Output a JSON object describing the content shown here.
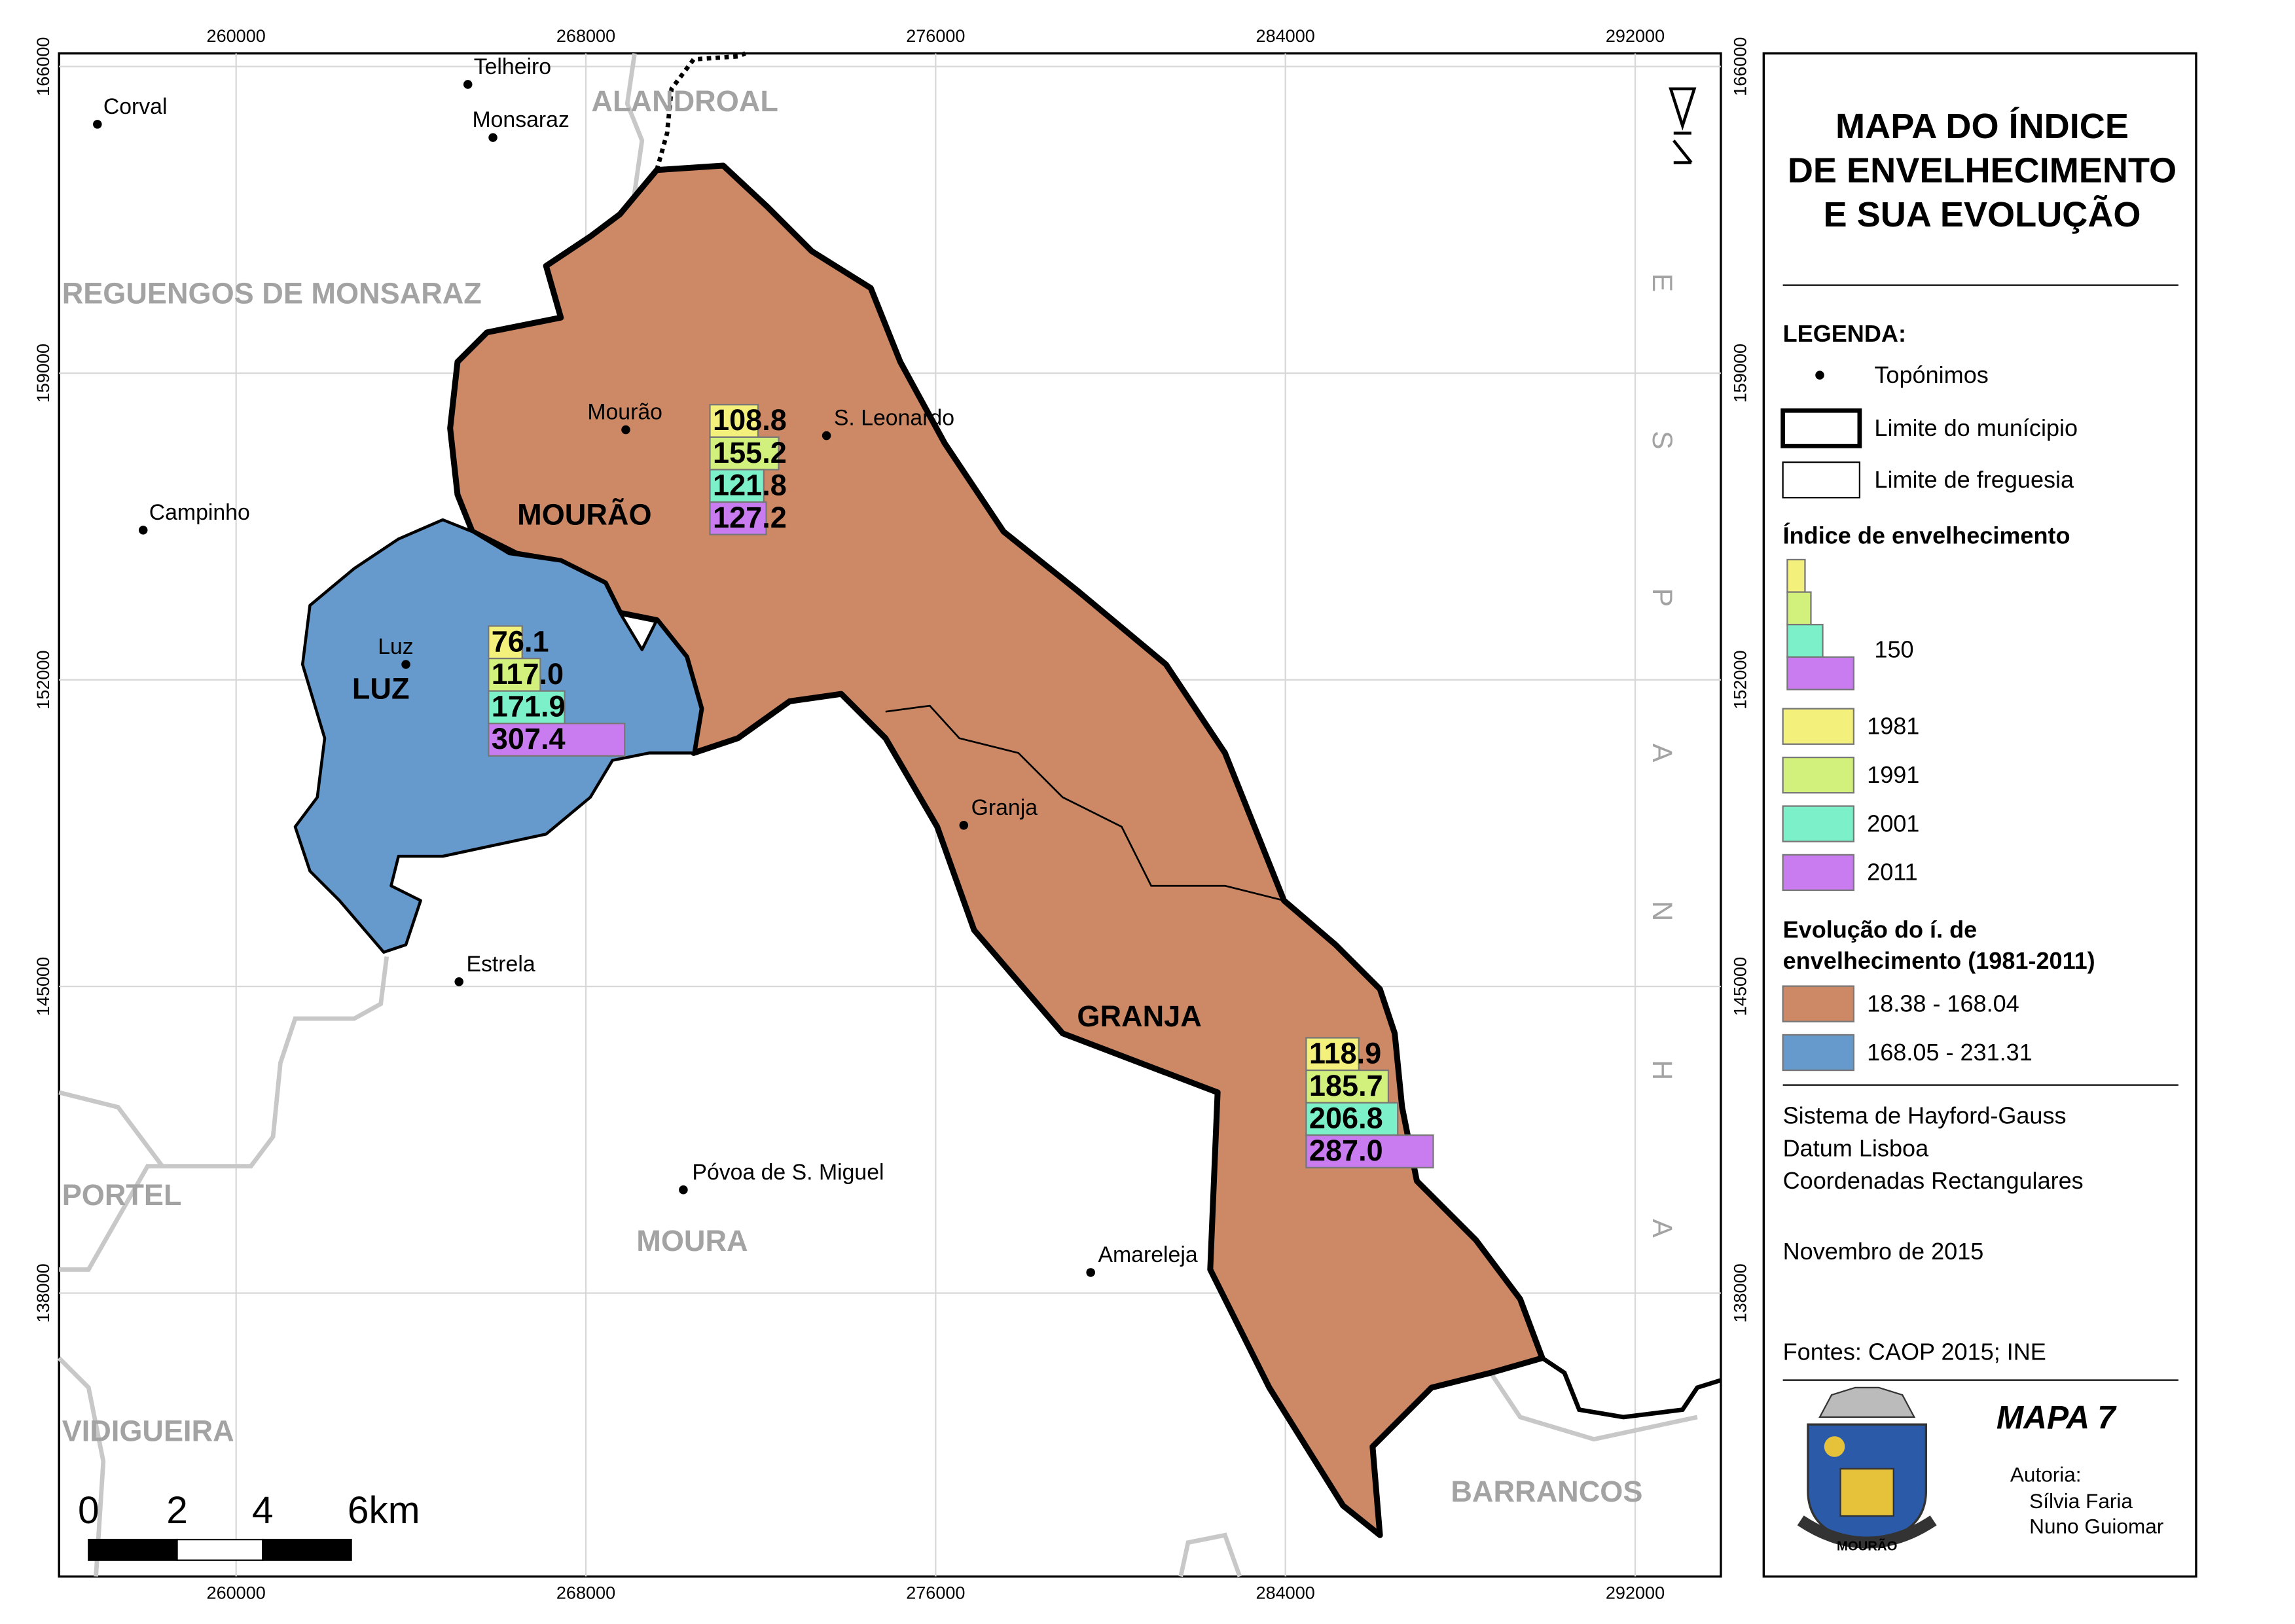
{
  "title": [
    "MAPA DO ÍNDICE",
    "DE ENVELHECIMENTO",
    "E SUA EVOLUÇÃO"
  ],
  "map": {
    "xlim": [
      255950,
      293960
    ],
    "ylim": [
      131530,
      166300
    ],
    "xticks": [
      260000,
      268000,
      276000,
      284000,
      292000
    ],
    "yticks": [
      138000,
      145000,
      152000,
      159000,
      166000
    ],
    "regions": [
      "ALANDROAL",
      "REGUENGOS DE MONSARAZ",
      "PORTEL",
      "MOURA",
      "VIDIGUEIRA",
      "BARRANCOS",
      "ESPANHA"
    ],
    "parishes": [
      "MOURÃO",
      "LUZ",
      "GRANJA"
    ],
    "places": [
      "Telheiro",
      "Corval",
      "Monsaraz",
      "Mourão",
      "S. Leonardo",
      "Campinho",
      "Luz",
      "Granja",
      "Estrela",
      "Póvoa de S. Miguel",
      "Amareleja"
    ],
    "bar_groups": [
      {
        "values": [
          108.8,
          155.2,
          121.8,
          127.2
        ],
        "value_labels": [
          "108.8",
          "155.2",
          "121.8",
          "127.2"
        ]
      },
      {
        "values": [
          76.1,
          117.0,
          171.9,
          307.4
        ],
        "value_labels": [
          "76.1",
          "117.0",
          "171.9",
          "307.4"
        ]
      },
      {
        "values": [
          118.9,
          185.7,
          206.8,
          287.0
        ],
        "value_labels": [
          "118.9",
          "185.7",
          "206.8",
          "287.0"
        ]
      }
    ],
    "scale_bar": [
      0,
      2,
      4,
      "6km"
    ]
  },
  "legend": {
    "heading": "LEGENDA:",
    "items": [
      "Topónimos",
      "Limite do munícipio",
      "Limite de freguesia"
    ],
    "index_heading": "Índice de envelhecimento",
    "reference": 150,
    "years": [
      {
        "label": "1981",
        "color": "#f3f07c"
      },
      {
        "label": "1991",
        "color": "#d2f07c"
      },
      {
        "label": "2001",
        "color": "#7cf0c8"
      },
      {
        "label": "2011",
        "color": "#c87cf0"
      }
    ],
    "evolution_heading": [
      "Evolução do í. de",
      "envelhecimento (1981-2011)"
    ],
    "classes": [
      {
        "label": "18.38 - 168.04",
        "color": "#cd8966"
      },
      {
        "label": "168.05 - 231.31",
        "color": "#6699cc"
      }
    ]
  },
  "projection": [
    "Sistema de Hayford-Gauss",
    "Datum Lisboa",
    "Coordenadas Rectangulares"
  ],
  "date": "Novembro de 2015",
  "sources": "Fontes: CAOP 2015; INE",
  "map_number": "MAPA 7",
  "authors_heading": "Autoria:",
  "authors": [
    "Sílvia Faria",
    "Nuno Guiomar"
  ],
  "crest_text": "MOURÃO"
}
